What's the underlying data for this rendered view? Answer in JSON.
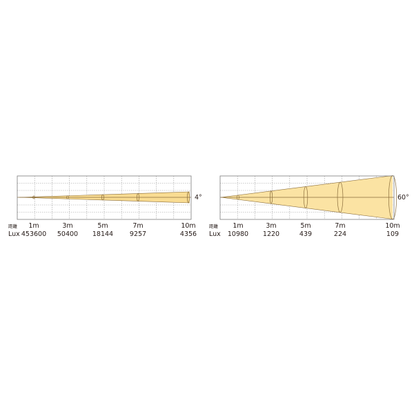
{
  "chart_data": [
    {
      "type": "area",
      "beam_angle_label": "4°",
      "row_labels": {
        "distance": "距離",
        "lux": "Lux"
      },
      "distances": [
        "1m",
        "3m",
        "5m",
        "7m",
        "10m"
      ],
      "distance_values": [
        1,
        3,
        5,
        7,
        10
      ],
      "lux": [
        "453600",
        "50400",
        "18144",
        "9257",
        "4356"
      ],
      "beam_angle_deg": 4,
      "grid": true,
      "colors": {
        "beam": "#f9dc92",
        "frame": "#7a7a7a",
        "grid": "#9a9a9a",
        "axis": "#8a6d3b"
      }
    },
    {
      "type": "area",
      "beam_angle_label": "60°",
      "row_labels": {
        "distance": "距離",
        "lux": "Lux"
      },
      "distances": [
        "1m",
        "3m",
        "5m",
        "7m",
        "10m"
      ],
      "distance_values": [
        1,
        3,
        5,
        7,
        10
      ],
      "lux": [
        "10980",
        "1220",
        "439",
        "224",
        "109"
      ],
      "beam_angle_deg": 60,
      "grid": true,
      "colors": {
        "beam": "#fbe3a3",
        "frame": "#7a7a7a",
        "grid": "#9a9a9a",
        "axis": "#8a6d3b"
      }
    }
  ]
}
